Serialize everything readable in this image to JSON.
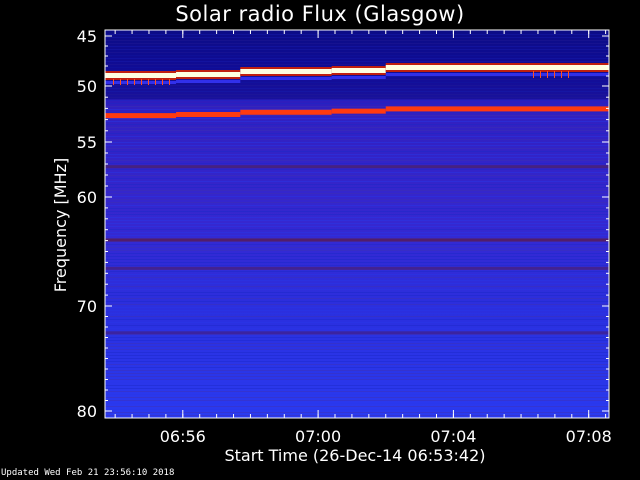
{
  "chart_data": {
    "type": "heatmap",
    "title": "Solar radio Flux (Glasgow)",
    "xlabel": "Start Time (26-Dec-14 06:53:42)",
    "ylabel": "Frequency [MHz]",
    "x_ticks": [
      "06:56",
      "07:00",
      "07:04",
      "07:08"
    ],
    "x_tick_minutes": [
      2.3,
      6.3,
      10.3,
      14.3
    ],
    "x_range_minutes": [
      0,
      14.9
    ],
    "y_ticks": [
      45,
      50,
      55,
      60,
      70,
      80
    ],
    "ylim": [
      45,
      80
    ],
    "y_scale": "log-like (frequency decreasing downward)",
    "segments_minutes": [
      0,
      2.1,
      4.0,
      6.7,
      8.3,
      14.9
    ],
    "bright_band_mhz": [
      48.9,
      48.8,
      48.5,
      48.4,
      48.1
    ],
    "red_band_mhz": [
      52.6,
      52.5,
      52.3,
      52.2,
      52.0
    ],
    "colors": {
      "background": "#2020e0",
      "bright": "#ffffe0",
      "red": "#ff3a10"
    }
  },
  "footer": "Updated Wed Feb 21 23:56:10 2018"
}
